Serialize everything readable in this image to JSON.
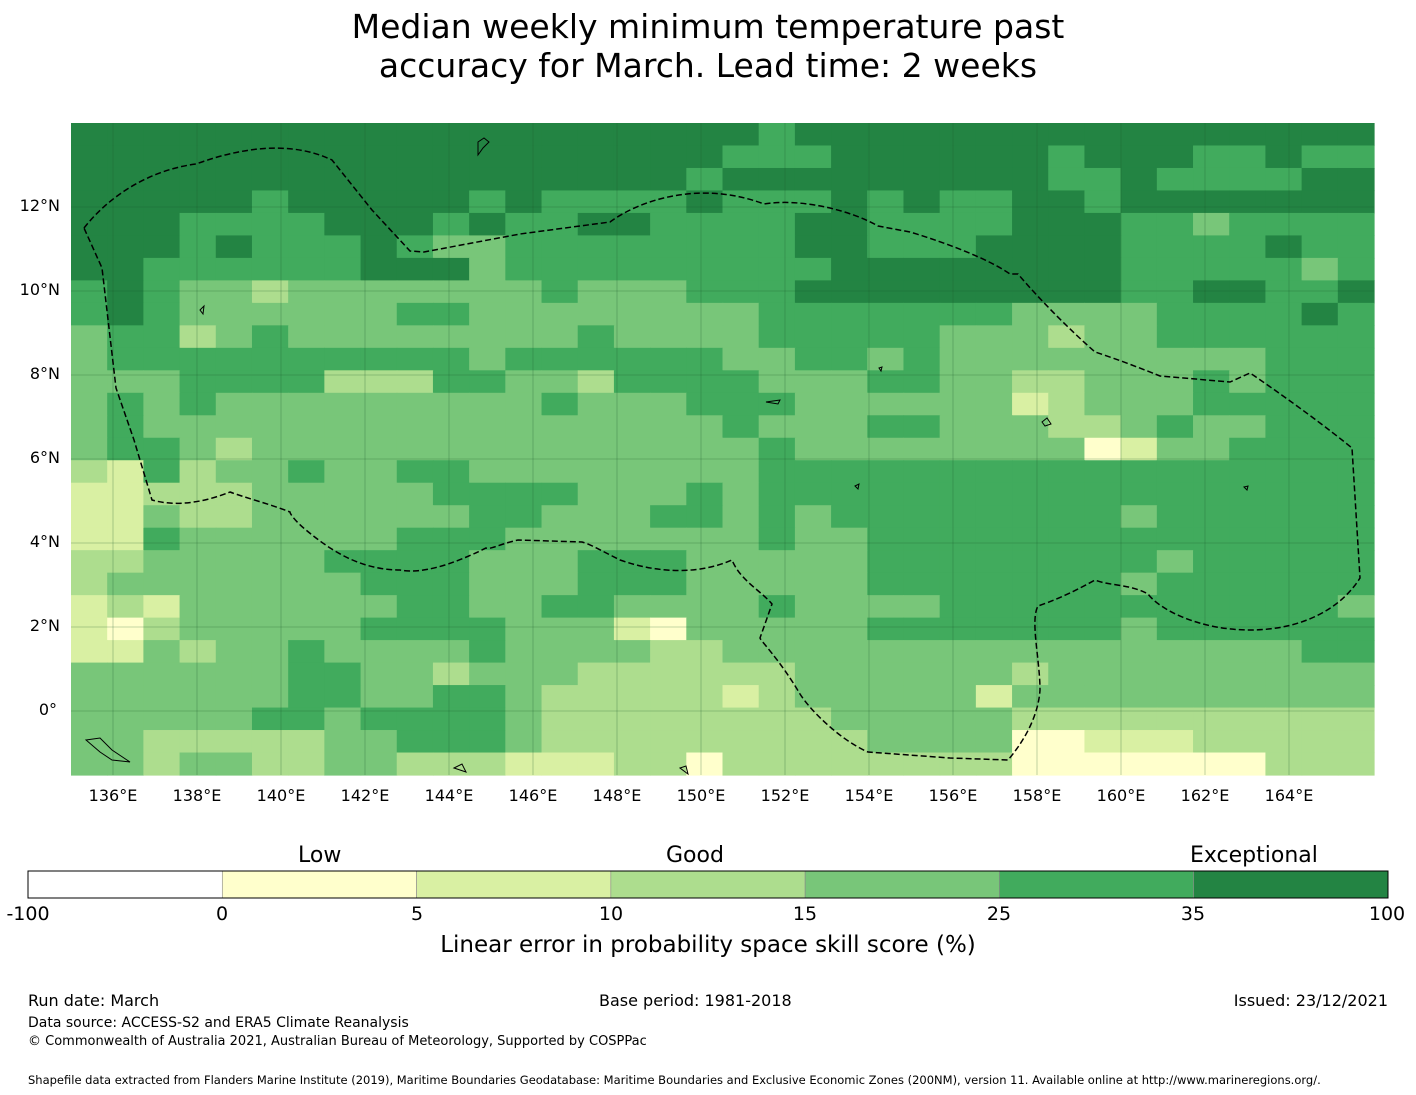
{
  "title": {
    "line1": "Median weekly minimum temperature past",
    "line2": "accuracy for March. Lead time: 2 weeks"
  },
  "map": {
    "latitude_labels": [
      "12°N",
      "10°N",
      "8°N",
      "6°N",
      "4°N",
      "2°N",
      "0°"
    ],
    "longitude_labels": [
      "136°E",
      "138°E",
      "140°E",
      "142°E",
      "144°E",
      "146°E",
      "148°E",
      "150°E",
      "152°E",
      "154°E",
      "156°E",
      "158°E",
      "160°E",
      "162°E",
      "164°E"
    ],
    "lon_range": [
      135,
      166
    ],
    "lat_range": [
      -1.5,
      14
    ],
    "grid_lines": true,
    "boundary_style": "dashed",
    "category_colors": [
      "#ffffff",
      "#ffffcc",
      "#d9f0a3",
      "#addd8e",
      "#78c679",
      "#41ab5d",
      "#238443"
    ],
    "skill_grid": [
      "666666666666666666656666666666666666",
      "666666666666666666555666666566655655",
      "666666666666666665666666666556555566",
      "666665666665655556555656556656666666",
      "666555566656556655556655556665545555",
      "666565556544555555556655566665555655",
      "665555556664555555555666666665555545",
      "565443444444454445556666666665566556",
      "565444444554444444455555554444555565",
      "455345444444445444455555444344555555",
      "455555555554555555445545444444444555",
      "444555533355443555544455443344454555",
      "454544444444454445554444442344455555",
      "454444444444444444544455444334544555",
      "455434444444444444454444444412445555",
      "325344544554444444455555555555555555",
      "223334444455554445455555555555555555",
      "224334444445544455454555555554555555",
      "225444444555444444454455555555555555",
      "334444455554445554444455555555455555",
      "344444445554445554444455555554555555",
      "232444444554455444454444555555555554",
      "213444445555444214444455555554555555",
      "224344544445444433444444444444444455",
      "444444554434443333334444443444444444",
      "444444554455433333234444424444444444",
      "444445545555433333333444443333333333",
      "443333344555433333333344441122233333",
      "443443344333222331333333331111111333"
    ]
  },
  "colorbar": {
    "category_words": [
      "Low",
      "Good",
      "Exceptional"
    ],
    "boundaries": [
      "-100",
      "0",
      "5",
      "10",
      "15",
      "25",
      "35",
      "100"
    ],
    "title": "Linear error in probability space skill score (%)"
  },
  "footer": {
    "run_date": "Run date: March",
    "base_period": "Base period: 1981-2018",
    "issued": "Issued: 23/12/2021",
    "data_source": "Data source: ACCESS-S2 and ERA5 Climate Reanalysis",
    "copyright": "© Commonwealth of Australia 2021, Australian Bureau of Meteorology, Supported by COSPPac",
    "shapefile": "Shapefile data extracted from Flanders Marine Institute (2019), Maritime Boundaries Geodatabase: Maritime Boundaries and Exclusive Economic Zones (200NM), version 11. Available online at http://www.marineregions.org/."
  }
}
